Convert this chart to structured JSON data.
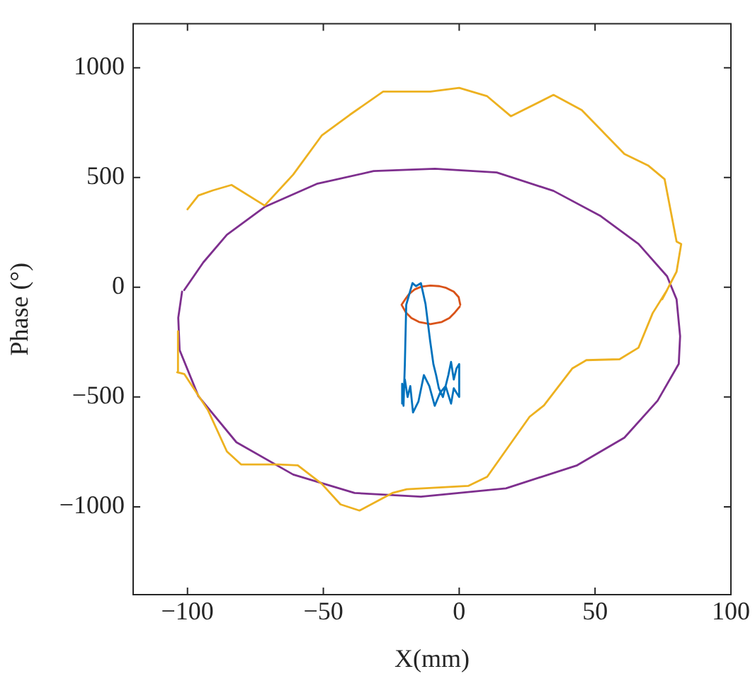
{
  "chart_data": {
    "type": "line",
    "xlabel": "X(mm)",
    "ylabel": "Phase (°)",
    "xlim": [
      -120,
      100
    ],
    "xticks": [
      -100,
      -50,
      0,
      50,
      100
    ],
    "ylim": [
      -1400,
      1200
    ],
    "yticks": [
      -1000,
      -500,
      0,
      500,
      1000
    ],
    "grid": false,
    "legend": false,
    "marker": "none",
    "line_style": "solid",
    "series": [
      {
        "color": "#0072bd",
        "x": [
          -21,
          -21,
          -20.5,
          -20,
          -19.5,
          -17.2,
          -15.9,
          -14.1,
          -12.4,
          -10.7,
          -9.5,
          -8.5,
          -7.5,
          -6,
          -4,
          -3,
          -2,
          -1,
          0,
          0,
          -1,
          -2,
          -3,
          -5,
          -7,
          -9,
          -11,
          -13,
          -15,
          -17,
          -18,
          -19,
          -20,
          -21
        ],
        "values": [
          -530,
          -440,
          -540,
          -350,
          -80,
          19,
          5,
          19,
          -76,
          -244,
          -350,
          -400,
          -460,
          -500,
          -400,
          -340,
          -420,
          -370,
          -350,
          -500,
          -480,
          -460,
          -530,
          -450,
          -480,
          -540,
          -450,
          -400,
          -520,
          -570,
          -450,
          -500,
          -420,
          -520
        ]
      },
      {
        "color": "#d95319",
        "x": [
          0.4,
          -0.2,
          -2.0,
          -4.8,
          -7.3,
          -10.6,
          -13.9,
          -16.4,
          -18.4,
          -19.6,
          -21.2,
          -19.6,
          -17.6,
          -14.8,
          -10.6,
          -6.4,
          -3.6,
          -1.6,
          0.2
        ],
        "values": [
          -80,
          -45,
          -20,
          -3,
          5,
          8,
          3,
          -10,
          -30,
          -50,
          -80,
          -115,
          -140,
          -158,
          -168,
          -158,
          -140,
          -115,
          -88
        ]
      },
      {
        "color": "#edb120",
        "x": [
          -100,
          -96,
          -90.7,
          -83.8,
          -71.6,
          -61.1,
          -50.6,
          -40.2,
          -28,
          -10.6,
          0,
          10.3,
          19,
          34.7,
          45.1,
          60.8,
          69.5,
          75.6,
          80,
          81.7,
          80,
          74.7,
          76.5,
          71.2,
          66,
          59,
          46.8,
          41.6,
          31.2,
          25.9,
          10.3,
          3.3,
          -19.3,
          -24.6,
          -36.7,
          -43.7,
          -50.6,
          -59.4,
          -66.4,
          -80.3,
          -85.5,
          -92.5,
          -101.2,
          -103.8,
          -103.5
        ],
        "values": [
          355,
          418,
          441,
          466,
          372,
          513,
          691,
          786,
          891,
          891,
          908,
          870,
          779,
          876,
          807,
          607,
          555,
          492,
          208,
          197,
          71,
          -55,
          -13,
          -118,
          -275,
          -328,
          -332,
          -370,
          -538,
          -590,
          -863,
          -905,
          -920,
          -937,
          -1017,
          -989,
          -895,
          -811,
          -807,
          -807,
          -748,
          -559,
          -395,
          -387,
          -200
        ]
      },
      {
        "color": "#7e2f8e",
        "x": [
          -101.2,
          -94.2,
          -85.5,
          -71.6,
          -52.4,
          -31.5,
          -8.9,
          13.8,
          34.7,
          52.1,
          66,
          76.5,
          80,
          81.3,
          80.8,
          73,
          60.8,
          43.4,
          17.2,
          -14.1,
          -38.5,
          -61.1,
          -82,
          -96,
          -102.9,
          -103.4,
          -102
        ],
        "values": [
          -13,
          113,
          239,
          366,
          471,
          529,
          540,
          523,
          439,
          324,
          197,
          50,
          -55,
          -223,
          -349,
          -517,
          -685,
          -811,
          -916,
          -954,
          -937,
          -853,
          -706,
          -496,
          -286,
          -139,
          -20
        ]
      }
    ]
  }
}
